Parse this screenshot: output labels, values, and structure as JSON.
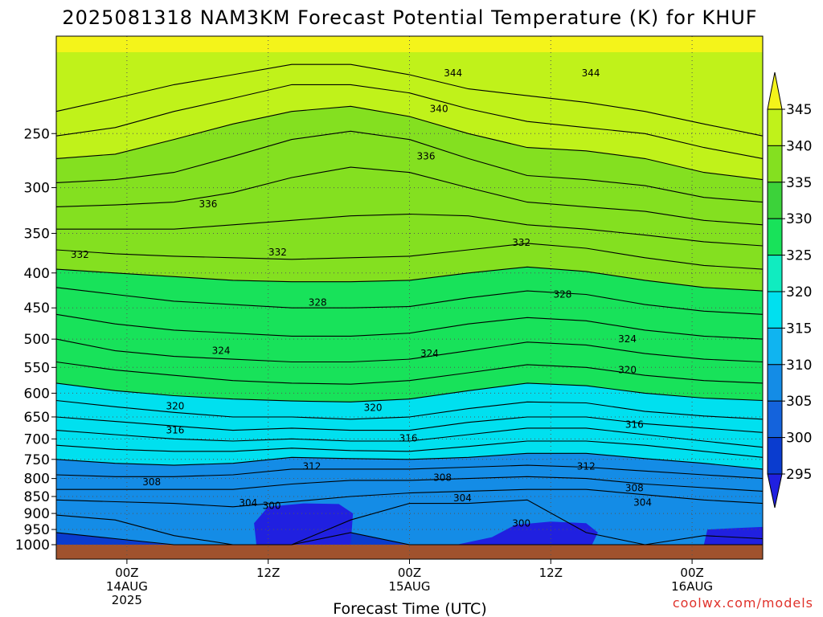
{
  "chart_data": {
    "type": "heatmap",
    "title": "2025081318 NAM3KM Forecast Potential Temperature (K) for KHUF",
    "xlabel": "Forecast Time (UTC)",
    "y_scale": "log-pressure",
    "y_range": [
      180,
      1050
    ],
    "y_ticks": [
      250,
      300,
      350,
      400,
      450,
      500,
      550,
      600,
      650,
      700,
      750,
      800,
      850,
      900,
      950,
      1000
    ],
    "x_range_hours": [
      0,
      60
    ],
    "x_ticks": [
      {
        "hour": 6,
        "lines": [
          "00Z",
          "14AUG",
          "2025"
        ]
      },
      {
        "hour": 18,
        "lines": [
          "12Z"
        ]
      },
      {
        "hour": 30,
        "lines": [
          "00Z",
          "15AUG"
        ]
      },
      {
        "hour": 42,
        "lines": [
          "12Z"
        ]
      },
      {
        "hour": 54,
        "lines": [
          "00Z",
          "16AUG"
        ]
      }
    ],
    "colorbar": {
      "units": "K",
      "levels": [
        295,
        300,
        305,
        310,
        315,
        320,
        325,
        330,
        335,
        340,
        345
      ],
      "labels": [
        "295",
        "300",
        "305",
        "310",
        "315",
        "320",
        "325",
        "330",
        "335",
        "340",
        "345"
      ],
      "colors": [
        "#2020e0",
        "#0a3ccf",
        "#1463dc",
        "#148ce6",
        "#10b4f0",
        "#00e0ef",
        "#10ecc0",
        "#18e25a",
        "#3cd23a",
        "#84e020",
        "#c0f21a",
        "#f4f41a"
      ]
    },
    "contour_interval": 2,
    "contours_at_hour": [
      {
        "theta": 300,
        "pressure": [
          960,
          980,
          1000,
          1000,
          1000,
          960,
          1000,
          1000,
          1000,
          1000,
          1000,
          1000,
          1000
        ]
      },
      {
        "theta": 302,
        "pressure": [
          905,
          920,
          970,
          1000,
          1000,
          920,
          870,
          870,
          860,
          960,
          1000,
          970,
          980
        ]
      },
      {
        "theta": 304,
        "pressure": [
          860,
          865,
          870,
          880,
          865,
          850,
          840,
          835,
          830,
          830,
          845,
          860,
          870
        ]
      },
      {
        "theta": 306,
        "pressure": [
          830,
          830,
          830,
          830,
          815,
          805,
          805,
          800,
          795,
          800,
          815,
          825,
          835
        ]
      },
      {
        "theta": 308,
        "pressure": [
          790,
          795,
          795,
          790,
          775,
          775,
          775,
          770,
          765,
          770,
          780,
          790,
          800
        ]
      },
      {
        "theta": 310,
        "pressure": [
          750,
          760,
          765,
          760,
          745,
          748,
          750,
          745,
          735,
          735,
          748,
          760,
          775
        ]
      },
      {
        "theta": 312,
        "pressure": [
          715,
          725,
          730,
          730,
          722,
          728,
          730,
          718,
          705,
          705,
          715,
          730,
          745
        ]
      },
      {
        "theta": 314,
        "pressure": [
          680,
          690,
          700,
          705,
          700,
          705,
          705,
          690,
          675,
          675,
          690,
          705,
          720
        ]
      },
      {
        "theta": 316,
        "pressure": [
          650,
          660,
          670,
          680,
          675,
          680,
          680,
          662,
          650,
          650,
          665,
          675,
          685
        ]
      },
      {
        "theta": 318,
        "pressure": [
          615,
          628,
          640,
          650,
          650,
          655,
          650,
          632,
          618,
          620,
          638,
          648,
          655
        ]
      },
      {
        "theta": 320,
        "pressure": [
          580,
          595,
          605,
          612,
          616,
          618,
          612,
          595,
          580,
          585,
          600,
          610,
          615
        ]
      },
      {
        "theta": 322,
        "pressure": [
          540,
          555,
          565,
          575,
          580,
          582,
          575,
          560,
          545,
          550,
          565,
          575,
          580
        ]
      },
      {
        "theta": 324,
        "pressure": [
          500,
          520,
          530,
          535,
          540,
          540,
          535,
          520,
          505,
          510,
          525,
          535,
          540
        ]
      },
      {
        "theta": 326,
        "pressure": [
          460,
          475,
          485,
          490,
          495,
          495,
          490,
          475,
          465,
          470,
          485,
          495,
          500
        ]
      },
      {
        "theta": 328,
        "pressure": [
          420,
          430,
          440,
          445,
          450,
          450,
          448,
          435,
          425,
          430,
          445,
          455,
          460
        ]
      },
      {
        "theta": 330,
        "pressure": [
          395,
          400,
          405,
          410,
          412,
          412,
          410,
          400,
          392,
          398,
          410,
          420,
          425
        ]
      },
      {
        "theta": 332,
        "pressure": [
          370,
          375,
          378,
          380,
          382,
          380,
          378,
          370,
          362,
          368,
          380,
          390,
          395
        ]
      },
      {
        "theta": 334,
        "pressure": [
          345,
          345,
          345,
          340,
          335,
          330,
          328,
          330,
          340,
          345,
          352,
          360,
          365
        ]
      },
      {
        "theta": 336,
        "pressure": [
          320,
          318,
          315,
          305,
          290,
          280,
          285,
          300,
          315,
          320,
          325,
          335,
          340
        ]
      },
      {
        "theta": 338,
        "pressure": [
          295,
          292,
          285,
          270,
          255,
          248,
          255,
          272,
          288,
          292,
          298,
          310,
          315
        ]
      },
      {
        "theta": 340,
        "pressure": [
          272,
          268,
          255,
          242,
          232,
          228,
          236,
          250,
          262,
          265,
          272,
          285,
          292
        ]
      },
      {
        "theta": 342,
        "pressure": [
          252,
          245,
          232,
          222,
          212,
          212,
          218,
          230,
          240,
          245,
          250,
          262,
          272
        ]
      },
      {
        "theta": 344,
        "pressure": [
          232,
          222,
          212,
          205,
          198,
          198,
          205,
          215,
          220,
          225,
          232,
          242,
          252
        ]
      }
    ],
    "contour_hours": [
      0,
      5,
      10,
      15,
      20,
      25,
      30,
      35,
      40,
      45,
      50,
      55,
      60
    ],
    "contour_labels": [
      {
        "text": "344",
        "hour": 33.7,
        "pressure": 204
      },
      {
        "text": "344",
        "hour": 45.4,
        "pressure": 204
      },
      {
        "text": "340",
        "hour": 32.5,
        "pressure": 230
      },
      {
        "text": "336",
        "hour": 31.4,
        "pressure": 270
      },
      {
        "text": "336",
        "hour": 12.9,
        "pressure": 317
      },
      {
        "text": "332",
        "hour": 2.0,
        "pressure": 376
      },
      {
        "text": "332",
        "hour": 18.8,
        "pressure": 373
      },
      {
        "text": "332",
        "hour": 39.5,
        "pressure": 361
      },
      {
        "text": "328",
        "hour": 22.2,
        "pressure": 442
      },
      {
        "text": "328",
        "hour": 43.0,
        "pressure": 430
      },
      {
        "text": "324",
        "hour": 14.0,
        "pressure": 520
      },
      {
        "text": "324",
        "hour": 31.7,
        "pressure": 525
      },
      {
        "text": "324",
        "hour": 48.5,
        "pressure": 500
      },
      {
        "text": "320",
        "hour": 48.5,
        "pressure": 555
      },
      {
        "text": "320",
        "hour": 10.1,
        "pressure": 627
      },
      {
        "text": "320",
        "hour": 26.9,
        "pressure": 630
      },
      {
        "text": "316",
        "hour": 10.1,
        "pressure": 680
      },
      {
        "text": "316",
        "hour": 29.9,
        "pressure": 698
      },
      {
        "text": "316",
        "hour": 49.1,
        "pressure": 667
      },
      {
        "text": "312",
        "hour": 21.7,
        "pressure": 768
      },
      {
        "text": "312",
        "hour": 45.0,
        "pressure": 768
      },
      {
        "text": "308",
        "hour": 8.1,
        "pressure": 810
      },
      {
        "text": "308",
        "hour": 32.8,
        "pressure": 798
      },
      {
        "text": "308",
        "hour": 49.1,
        "pressure": 826
      },
      {
        "text": "304",
        "hour": 16.3,
        "pressure": 869
      },
      {
        "text": "304",
        "hour": 34.5,
        "pressure": 855
      },
      {
        "text": "304",
        "hour": 49.8,
        "pressure": 868
      },
      {
        "text": "300",
        "hour": 18.3,
        "pressure": 877
      },
      {
        "text": "300",
        "hour": 39.5,
        "pressure": 931
      }
    ],
    "surface_pressure": 1000
  },
  "credit": "coolwx.com/models"
}
